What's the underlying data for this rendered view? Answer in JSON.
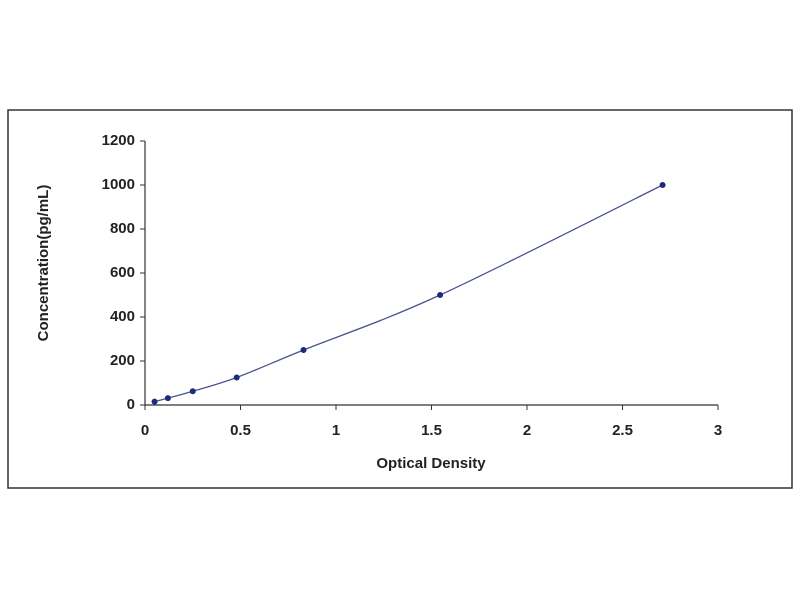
{
  "chart_data": {
    "type": "scatter",
    "x_label": "Optical Density",
    "y_label": "Concentration(pg/mL)",
    "series": [
      {
        "color": "#1f2a7a",
        "x": [
          0.05,
          0.12,
          0.25,
          0.48,
          0.83,
          1.545,
          2.71
        ],
        "values": [
          15.6,
          31.25,
          62.5,
          125,
          250,
          500,
          1000
        ]
      }
    ],
    "fit_line": true,
    "line_color": "#4a5490",
    "xlim": [
      0,
      3
    ],
    "xticks": [
      0,
      0.5,
      1,
      1.5,
      2,
      2.5,
      3
    ],
    "ylim": [
      0,
      1200
    ],
    "yticks": [
      0,
      200,
      400,
      600,
      800,
      1000,
      1200
    ],
    "grid": false
  }
}
